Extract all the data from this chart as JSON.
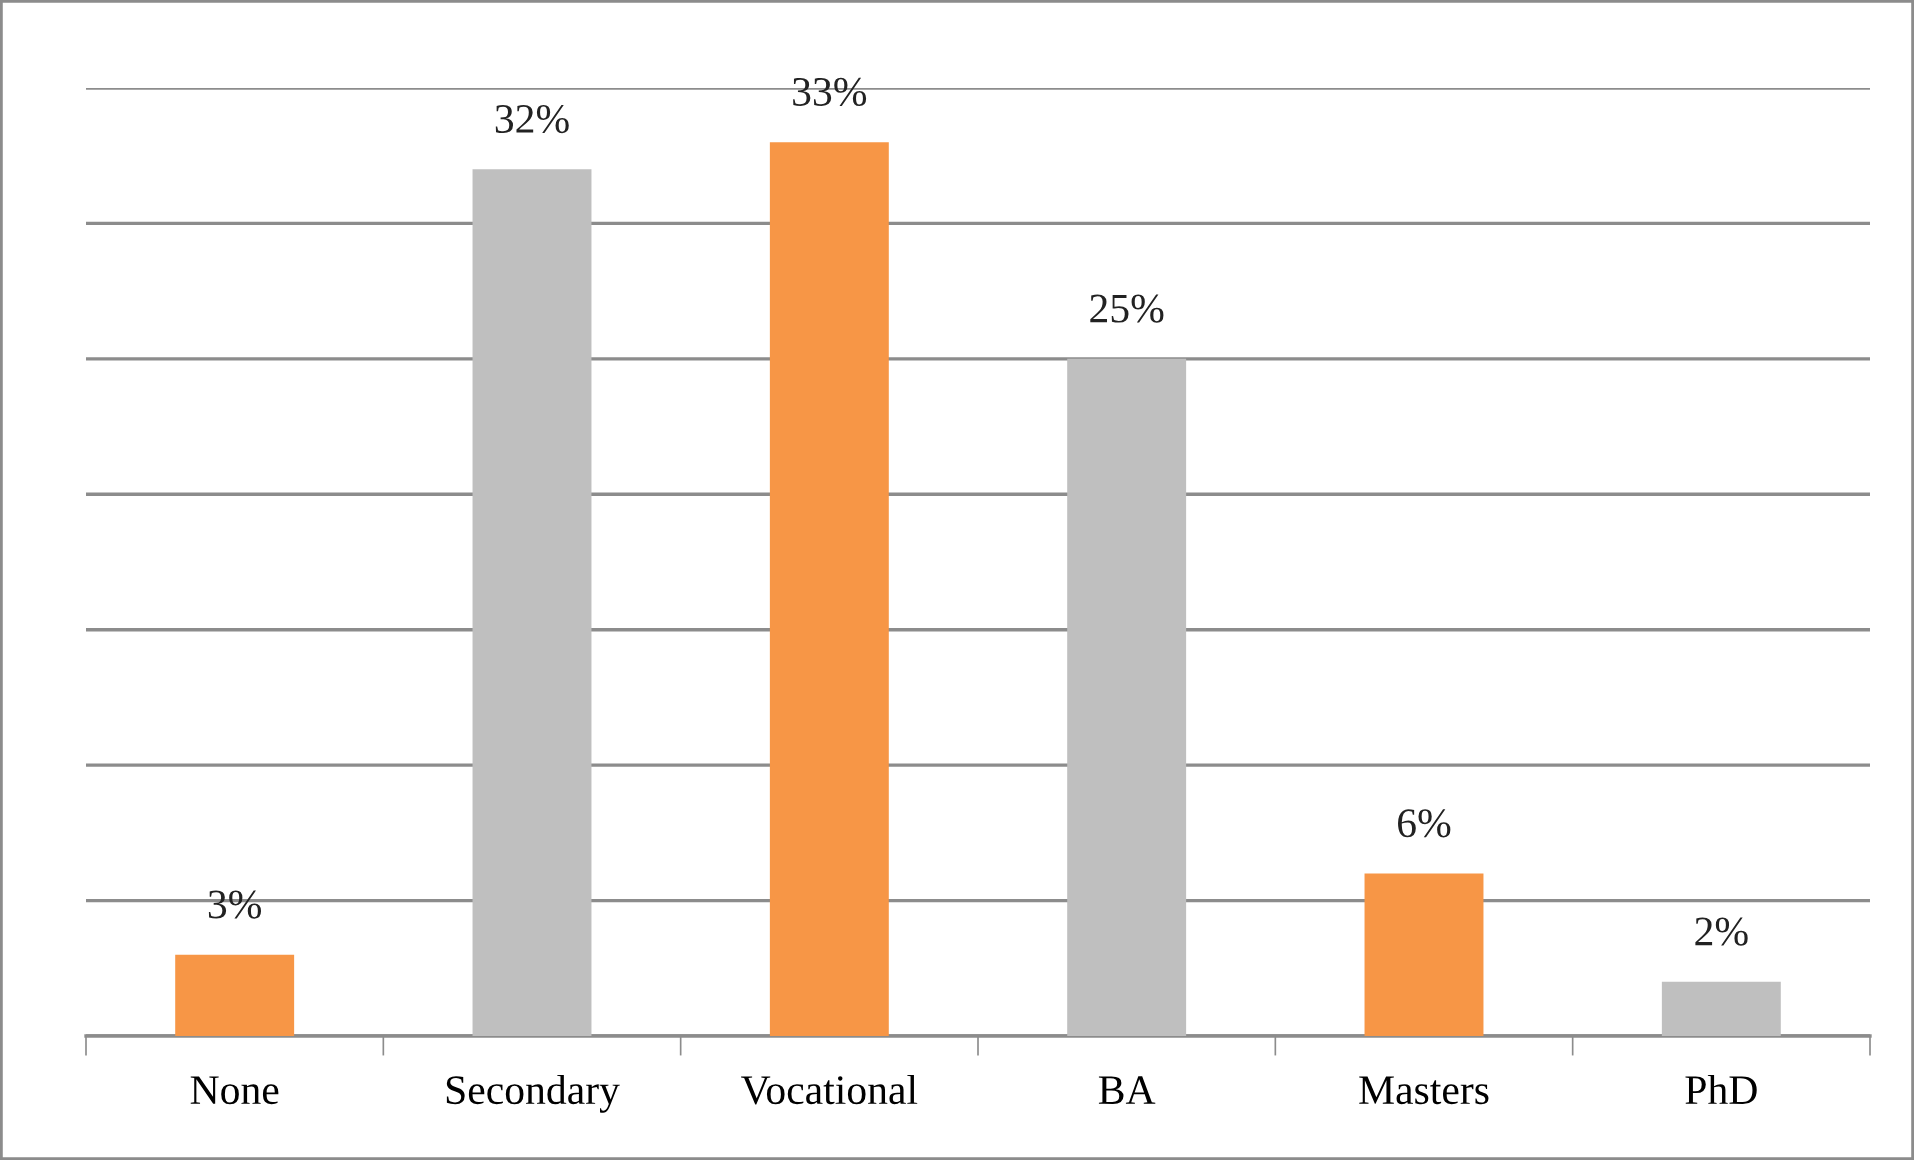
{
  "chart_data": {
    "type": "bar",
    "categories": [
      "None",
      "Secondary",
      "Vocational",
      "BA",
      "Masters",
      "PhD"
    ],
    "values": [
      3,
      32,
      33,
      25,
      6,
      2
    ],
    "value_labels": [
      "3%",
      "32%",
      "33%",
      "25%",
      "6%",
      "2%"
    ],
    "colors": [
      "#f79646",
      "#bfbfbf",
      "#f79646",
      "#bfbfbf",
      "#f79646",
      "#bfbfbf"
    ],
    "ylim": [
      0,
      35
    ],
    "yticks": [
      {
        "value": 0,
        "label": null
      },
      {
        "value": 5,
        "label": null
      },
      {
        "value": 10,
        "label": null
      },
      {
        "value": 15,
        "label": null
      },
      {
        "value": 20,
        "label": null
      },
      {
        "value": 25,
        "label": null
      },
      {
        "value": 30,
        "label": null
      },
      {
        "value": 35,
        "label": null
      }
    ],
    "grid": "y",
    "tick_labels": "x"
  }
}
